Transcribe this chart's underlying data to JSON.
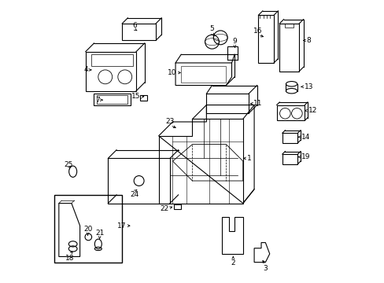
{
  "title": "",
  "background_color": "#ffffff",
  "border_color": "#000000",
  "line_color": "#000000",
  "text_color": "#000000",
  "fig_width": 4.89,
  "fig_height": 3.6,
  "dpi": 100
}
